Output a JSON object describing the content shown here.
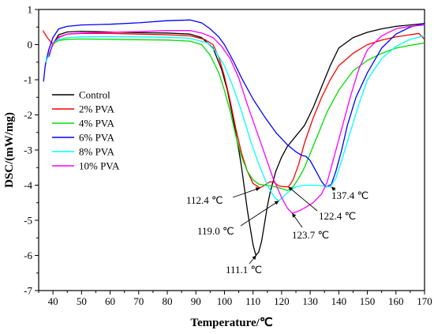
{
  "chart_data": {
    "type": "line",
    "xlabel": "Temperature/℃",
    "ylabel": "DSC/(mW/mg)",
    "xlim": [
      35,
      170
    ],
    "ylim": [
      -7,
      1
    ],
    "xticks": [
      "40",
      "50",
      "60",
      "70",
      "80",
      "90",
      "100",
      "110",
      "120",
      "130",
      "140",
      "150",
      "160",
      "170"
    ],
    "yticks": [
      "1",
      "0",
      "-1",
      "-2",
      "-3",
      "-4",
      "-5",
      "-6",
      "-7"
    ],
    "legend_position": "left",
    "series": [
      {
        "name": "Control",
        "color": "#000000",
        "x": [
          38.5,
          39.5,
          40.5,
          42,
          45,
          50,
          60,
          70,
          80,
          88,
          92,
          96,
          99,
          101,
          103,
          105,
          106,
          107,
          108,
          109,
          110,
          111,
          112,
          113,
          114,
          115,
          116,
          118,
          120,
          122,
          125,
          128,
          131,
          134,
          137,
          140,
          145,
          150,
          155,
          160,
          165,
          170
        ],
        "y": [
          -0.35,
          -0.1,
          0.08,
          0.28,
          0.36,
          0.38,
          0.36,
          0.34,
          0.33,
          0.3,
          0.2,
          -0.1,
          -0.7,
          -1.3,
          -2.1,
          -3.0,
          -3.5,
          -4.1,
          -4.7,
          -5.2,
          -5.7,
          -6.0,
          -5.9,
          -5.6,
          -5.1,
          -4.6,
          -4.2,
          -3.6,
          -3.2,
          -2.9,
          -2.6,
          -2.3,
          -1.8,
          -1.2,
          -0.6,
          -0.1,
          0.2,
          0.35,
          0.45,
          0.52,
          0.56,
          0.6
        ]
      },
      {
        "name": "2% PVA",
        "color": "#ff0000",
        "x": [
          36.5,
          38,
          40,
          42,
          45,
          50,
          60,
          70,
          80,
          88,
          93,
          96,
          98,
          100,
          102,
          104,
          106,
          108,
          110,
          112.4,
          114,
          116,
          117.5,
          119,
          120.5,
          122.4,
          124,
          126,
          128,
          131,
          134,
          137,
          140,
          145,
          150,
          155,
          160,
          165,
          168,
          170
        ],
        "y": [
          0.4,
          0.2,
          0.0,
          0.22,
          0.3,
          0.32,
          0.32,
          0.3,
          0.28,
          0.25,
          0.15,
          0.0,
          -0.35,
          -0.9,
          -1.6,
          -2.4,
          -3.1,
          -3.6,
          -3.95,
          -4.08,
          -4.0,
          -3.9,
          -3.93,
          -4.02,
          -4.04,
          -4.05,
          -3.85,
          -3.4,
          -2.8,
          -2.1,
          -1.5,
          -1.0,
          -0.6,
          -0.25,
          0.0,
          0.13,
          0.22,
          0.28,
          0.32,
          0.15
        ]
      },
      {
        "name": "4% PVA",
        "color": "#00dd00",
        "x": [
          37.5,
          38.5,
          40,
          42,
          45,
          50,
          60,
          70,
          80,
          88,
          92,
          95,
          98,
          100,
          102,
          104,
          106,
          108,
          110,
          112,
          114,
          116,
          118,
          120,
          122,
          124,
          126,
          128,
          130,
          133,
          136,
          140,
          145,
          150,
          155,
          160,
          165,
          170
        ],
        "y": [
          -0.5,
          -0.3,
          0.02,
          0.12,
          0.15,
          0.16,
          0.15,
          0.14,
          0.13,
          0.1,
          0.0,
          -0.3,
          -0.8,
          -1.3,
          -1.9,
          -2.6,
          -3.2,
          -3.6,
          -3.85,
          -3.97,
          -4.0,
          -4.02,
          -4.05,
          -4.1,
          -4.15,
          -4.05,
          -3.8,
          -3.5,
          -3.1,
          -2.5,
          -1.9,
          -1.3,
          -0.75,
          -0.45,
          -0.25,
          -0.1,
          -0.02,
          0.05
        ]
      },
      {
        "name": "6% PVA",
        "color": "#0000ff",
        "x": [
          36.7,
          37.3,
          38.5,
          40,
          42,
          45,
          50,
          60,
          70,
          80,
          88,
          92,
          95,
          98,
          100,
          103,
          106,
          110,
          114,
          118,
          122,
          125,
          127,
          128.5,
          130,
          132,
          134,
          135.5,
          137.4,
          139,
          141,
          143,
          146,
          150,
          155,
          160,
          165,
          170
        ],
        "y": [
          -1.05,
          -0.6,
          -0.15,
          0.2,
          0.45,
          0.52,
          0.56,
          0.58,
          0.62,
          0.68,
          0.7,
          0.62,
          0.45,
          0.22,
          0.0,
          -0.45,
          -0.95,
          -1.55,
          -2.05,
          -2.5,
          -2.85,
          -3.05,
          -3.15,
          -3.18,
          -3.3,
          -3.6,
          -3.9,
          -4.05,
          -3.98,
          -3.6,
          -3.0,
          -2.3,
          -1.5,
          -0.8,
          -0.1,
          0.3,
          0.5,
          0.6
        ]
      },
      {
        "name": "8% PVA",
        "color": "#00ffff",
        "x": [
          37.5,
          38.5,
          40,
          42,
          45,
          50,
          60,
          70,
          80,
          88,
          94,
          97,
          100,
          103,
          106,
          109,
          112,
          115,
          117.5,
          119,
          121,
          123,
          125,
          128,
          131,
          134,
          137,
          139,
          141,
          144,
          147,
          150,
          155,
          160,
          165,
          170
        ],
        "y": [
          -0.5,
          -0.3,
          0.05,
          0.15,
          0.2,
          0.22,
          0.23,
          0.22,
          0.21,
          0.18,
          0.05,
          -0.2,
          -0.6,
          -1.2,
          -1.9,
          -2.7,
          -3.4,
          -4.0,
          -4.35,
          -4.45,
          -4.3,
          -4.15,
          -4.05,
          -4.0,
          -4.0,
          -4.02,
          -4.05,
          -3.8,
          -3.3,
          -2.5,
          -1.7,
          -1.0,
          -0.4,
          -0.05,
          0.15,
          0.25
        ]
      },
      {
        "name": "10% PVA",
        "color": "#ff00ff",
        "x": [
          38.5,
          40,
          42,
          45,
          50,
          60,
          70,
          80,
          88,
          92,
          96,
          99,
          102,
          105,
          108,
          111,
          114,
          117,
          120,
          122,
          123.7,
          125.5,
          128,
          131,
          134,
          136,
          138,
          141,
          144,
          147,
          150,
          155,
          160,
          165,
          170
        ],
        "y": [
          -0.3,
          0.05,
          0.2,
          0.3,
          0.33,
          0.35,
          0.37,
          0.4,
          0.4,
          0.33,
          0.2,
          -0.05,
          -0.4,
          -0.95,
          -1.7,
          -2.4,
          -3.1,
          -3.8,
          -4.35,
          -4.65,
          -4.8,
          -4.75,
          -4.65,
          -4.5,
          -4.25,
          -3.9,
          -3.3,
          -2.4,
          -1.5,
          -0.7,
          -0.15,
          0.25,
          0.45,
          0.52,
          0.56
        ]
      }
    ],
    "annotations": [
      {
        "text": "111.1 ℃",
        "x": 111.1,
        "y": -6.0
      },
      {
        "text": "112.4 ℃",
        "x": 112.4,
        "y": -4.08
      },
      {
        "text": "119.0 ℃",
        "x": 119.0,
        "y": -4.45
      },
      {
        "text": "122.4 ℃",
        "x": 122.4,
        "y": -4.05
      },
      {
        "text": "123.7 ℃",
        "x": 123.7,
        "y": -4.8
      },
      {
        "text": "137.4 ℃",
        "x": 137.4,
        "y": -4.05
      }
    ]
  }
}
